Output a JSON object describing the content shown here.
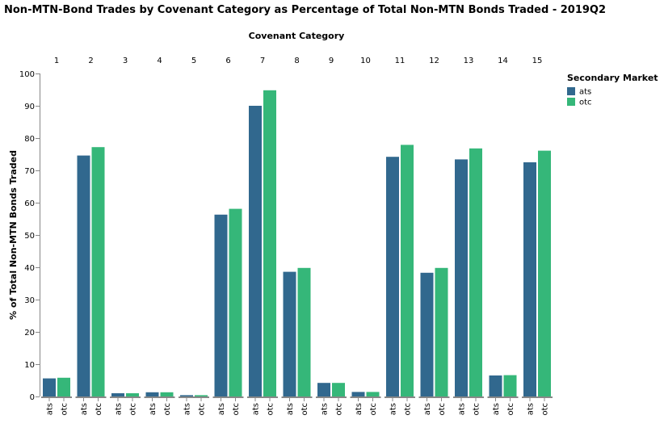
{
  "chart_data": {
    "type": "bar",
    "title": "Non-MTN-Bond Trades by Covenant Category as Percentage of Total Non-MTN Bonds Traded - 2019Q2",
    "column_title": "Covenant Category",
    "ylabel": "% of Total Non-MTN Bonds Traded",
    "ylim": [
      0,
      100
    ],
    "yticks": [
      0,
      10,
      20,
      30,
      40,
      50,
      60,
      70,
      80,
      90,
      100
    ],
    "grid": false,
    "legend_placement": "top-right",
    "legend_title": "Secondary Market",
    "categories": [
      "1",
      "2",
      "3",
      "4",
      "5",
      "6",
      "7",
      "8",
      "9",
      "10",
      "11",
      "12",
      "13",
      "14",
      "15"
    ],
    "subcategories": [
      "ats",
      "otc"
    ],
    "series": [
      {
        "name": "ats",
        "color": "#31688e",
        "values": [
          5.6,
          74.6,
          1.0,
          1.3,
          0.4,
          56.3,
          90.0,
          38.6,
          4.2,
          1.4,
          74.2,
          38.3,
          73.4,
          6.5,
          72.5
        ]
      },
      {
        "name": "otc",
        "color": "#35b779",
        "values": [
          5.8,
          77.2,
          1.0,
          1.3,
          0.4,
          58.1,
          94.8,
          39.8,
          4.2,
          1.4,
          77.9,
          39.8,
          76.8,
          6.6,
          76.1
        ]
      }
    ]
  }
}
